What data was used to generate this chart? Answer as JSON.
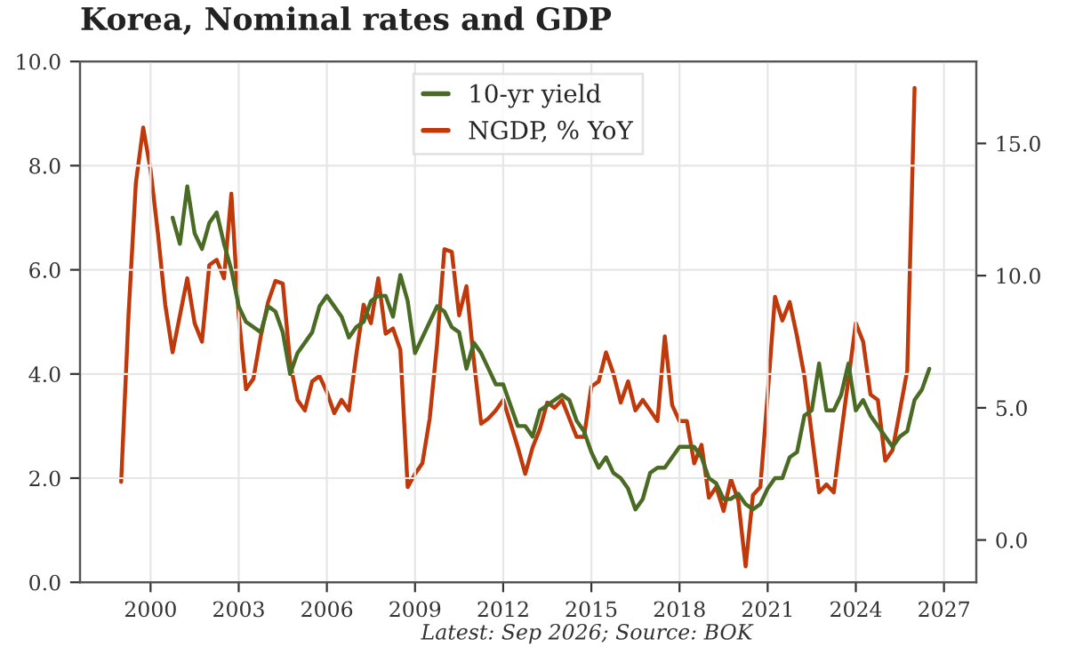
{
  "chart_data": {
    "type": "line",
    "title": "Korea, Nominal rates and GDP",
    "annotations": [
      "Latest: Sep 2026; Source: BOK"
    ],
    "xlim": [
      1997.6,
      2028.1
    ],
    "xticks": [
      2000,
      2003,
      2006,
      2009,
      2012,
      2015,
      2018,
      2021,
      2024,
      2027
    ],
    "ylim": [
      0,
      10
    ],
    "yticks": [
      {
        "value": 0,
        "label": "0.0"
      },
      {
        "value": 2,
        "label": "2.0"
      },
      {
        "value": 4,
        "label": "4.0"
      },
      {
        "value": 6,
        "label": "6.0"
      },
      {
        "value": 8,
        "label": "8.0"
      },
      {
        "value": 10,
        "label": "10.0"
      }
    ],
    "y2lim": [
      -1.6,
      18.1
    ],
    "y2ticks": [
      {
        "value": 0,
        "label": "0.0"
      },
      {
        "value": 5,
        "label": "5.0"
      },
      {
        "value": 10,
        "label": "10.0"
      },
      {
        "value": 15,
        "label": "15.0"
      }
    ],
    "grid": true,
    "legend": "top",
    "series": [
      {
        "name": "10-yr yield",
        "color": "#4a6b23",
        "x": [
          2000.75,
          2001,
          2001.25,
          2001.5,
          2001.75,
          2002,
          2002.25,
          2002.5,
          2002.75,
          2003,
          2003.25,
          2003.5,
          2003.75,
          2004,
          2004.25,
          2004.5,
          2004.75,
          2005,
          2005.25,
          2005.5,
          2005.75,
          2006,
          2006.25,
          2006.5,
          2006.75,
          2007,
          2007.25,
          2007.5,
          2007.75,
          2008,
          2008.25,
          2008.5,
          2008.75,
          2009,
          2009.25,
          2009.5,
          2009.75,
          2010,
          2010.25,
          2010.5,
          2010.75,
          2011,
          2011.25,
          2011.5,
          2011.75,
          2012,
          2012.25,
          2012.5,
          2012.75,
          2013,
          2013.25,
          2013.5,
          2013.75,
          2014,
          2014.25,
          2014.5,
          2014.75,
          2015,
          2015.25,
          2015.5,
          2015.75,
          2016,
          2016.25,
          2016.5,
          2016.75,
          2017,
          2017.25,
          2017.5,
          2017.75,
          2018,
          2018.25,
          2018.5,
          2018.75,
          2019,
          2019.25,
          2019.5,
          2019.75,
          2020,
          2020.25,
          2020.5,
          2020.75,
          2021,
          2021.25,
          2021.5,
          2021.75,
          2022,
          2022.25,
          2022.5,
          2022.75,
          2023,
          2023.25,
          2023.5,
          2023.75,
          2024,
          2024.25,
          2024.5,
          2024.75,
          2025,
          2025.25,
          2025.5,
          2025.75,
          2026,
          2026.25,
          2026.5
        ],
        "values": [
          7.0,
          6.5,
          7.6,
          6.7,
          6.4,
          6.9,
          7.1,
          6.5,
          6.0,
          5.3,
          5.0,
          4.9,
          4.8,
          5.3,
          5.2,
          4.8,
          4.0,
          4.4,
          4.6,
          4.8,
          5.3,
          5.5,
          5.3,
          5.1,
          4.7,
          4.9,
          5.0,
          5.4,
          5.5,
          5.5,
          5.1,
          5.9,
          5.4,
          4.4,
          4.7,
          5.0,
          5.3,
          5.2,
          4.9,
          4.8,
          4.1,
          4.6,
          4.4,
          4.1,
          3.8,
          3.8,
          3.4,
          3.0,
          3.0,
          2.8,
          3.3,
          3.4,
          3.5,
          3.6,
          3.5,
          3.1,
          2.9,
          2.5,
          2.2,
          2.4,
          2.1,
          2.0,
          1.8,
          1.4,
          1.6,
          2.1,
          2.2,
          2.2,
          2.4,
          2.6,
          2.6,
          2.6,
          2.4,
          2.0,
          1.9,
          1.6,
          1.6,
          1.7,
          1.5,
          1.4,
          1.5,
          1.8,
          2.0,
          2.0,
          2.4,
          2.5,
          3.2,
          3.3,
          4.2,
          3.3,
          3.3,
          3.6,
          4.2,
          3.3,
          3.5,
          3.2,
          3.0,
          2.8,
          2.6,
          2.8,
          2.9,
          3.5,
          3.7,
          4.1
        ]
      },
      {
        "name": "NGDP, % YoY",
        "color": "#c0390b",
        "axis": "y2",
        "x": [
          1999,
          1999.25,
          1999.5,
          1999.75,
          2000,
          2000.25,
          2000.5,
          2000.75,
          2001,
          2001.25,
          2001.5,
          2001.75,
          2002,
          2002.25,
          2002.5,
          2002.75,
          2003,
          2003.25,
          2003.5,
          2003.75,
          2004,
          2004.25,
          2004.5,
          2004.75,
          2005,
          2005.25,
          2005.5,
          2005.75,
          2006,
          2006.25,
          2006.5,
          2006.75,
          2007,
          2007.25,
          2007.5,
          2007.75,
          2008,
          2008.25,
          2008.5,
          2008.75,
          2009,
          2009.25,
          2009.5,
          2009.75,
          2010,
          2010.25,
          2010.5,
          2010.75,
          2011,
          2011.25,
          2011.5,
          2011.75,
          2012,
          2012.25,
          2012.5,
          2012.75,
          2013,
          2013.25,
          2013.5,
          2013.75,
          2014,
          2014.25,
          2014.5,
          2014.75,
          2015,
          2015.25,
          2015.5,
          2015.75,
          2016,
          2016.25,
          2016.5,
          2016.75,
          2017,
          2017.25,
          2017.5,
          2017.75,
          2018,
          2018.25,
          2018.5,
          2018.75,
          2019,
          2019.25,
          2019.5,
          2019.75,
          2020,
          2020.25,
          2020.5,
          2020.75,
          2021,
          2021.25,
          2021.5,
          2021.75,
          2022,
          2022.25,
          2022.5,
          2022.75,
          2023,
          2023.25,
          2023.5,
          2023.75,
          2024,
          2024.25,
          2024.5,
          2024.75,
          2025,
          2025.25,
          2025.5,
          2025.75,
          2026
        ],
        "values": [
          2.2,
          8.5,
          13.5,
          15.6,
          14.0,
          11.6,
          8.9,
          7.1,
          8.5,
          9.9,
          8.2,
          7.5,
          10.4,
          10.6,
          9.9,
          13.1,
          8.5,
          5.7,
          6.1,
          7.7,
          9.0,
          9.8,
          9.7,
          6.7,
          5.3,
          4.9,
          6.0,
          6.2,
          5.6,
          4.8,
          5.3,
          4.9,
          7.0,
          8.9,
          8.2,
          9.9,
          7.8,
          8.0,
          7.2,
          2.0,
          2.5,
          2.9,
          4.6,
          7.4,
          11.0,
          10.9,
          8.5,
          9.6,
          6.8,
          4.4,
          4.6,
          4.9,
          5.3,
          4.4,
          3.5,
          2.5,
          3.5,
          4.2,
          5.2,
          5.0,
          5.3,
          4.6,
          3.9,
          3.9,
          5.8,
          6.0,
          7.1,
          6.3,
          5.2,
          6.0,
          4.9,
          5.3,
          4.9,
          4.5,
          7.7,
          5.1,
          4.5,
          4.5,
          2.9,
          3.6,
          1.6,
          2.0,
          1.1,
          2.3,
          1.5,
          -1.0,
          1.7,
          2.0,
          5.5,
          9.2,
          8.3,
          9.0,
          7.7,
          6.2,
          4.0,
          1.8,
          2.1,
          1.8,
          4.0,
          6.1,
          8.2,
          7.5,
          5.5,
          5.3,
          3.0,
          3.4,
          4.9,
          6.4,
          17.1
        ]
      }
    ]
  }
}
